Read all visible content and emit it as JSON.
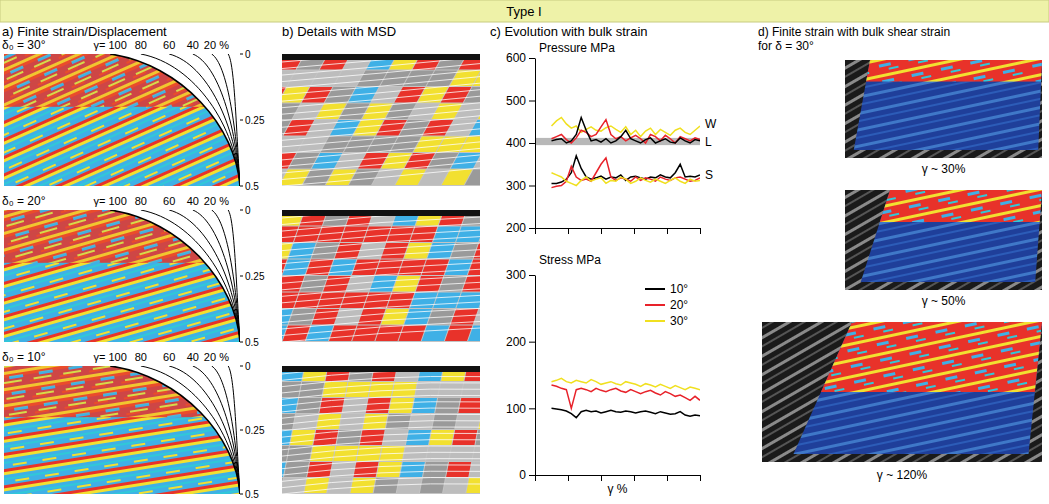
{
  "figure": {
    "title": "Type I",
    "panel_a": {
      "title": "a) Finite strain/Displacement",
      "rows": [
        "δ₀ = 30°",
        "δ₀ = 20°",
        "δ₀ = 10°"
      ],
      "strain_labels": [
        "γ= 100",
        "80",
        "60",
        "40",
        "20 %"
      ],
      "depth_ticks": [
        0,
        0.25,
        0.5
      ]
    },
    "panel_b": {
      "title": "b) Details with MSD"
    },
    "panel_c": {
      "title": "c) Evolution with bulk strain"
    },
    "panel_d": {
      "title": "d)  Finite strain with  bulk shear strain",
      "subtitle": "for δ = 30°",
      "labels": [
        "γ ~ 30%",
        "γ ~ 50%",
        "γ ~ 120%"
      ]
    }
  },
  "chart_data": [
    {
      "type": "line",
      "title": "Pressure MPa",
      "x": [
        10,
        13,
        16,
        19,
        22,
        25,
        28,
        31,
        34,
        37,
        40,
        43,
        46,
        49,
        52,
        55,
        58,
        61,
        64,
        67,
        70,
        73,
        76,
        79,
        82,
        85,
        88,
        91,
        94,
        97,
        100
      ],
      "xlim": [
        0,
        100
      ],
      "xticks": [
        0,
        20,
        40,
        60,
        80,
        100
      ],
      "ylim": [
        200,
        600
      ],
      "yticks": [
        200,
        300,
        400,
        500,
        600
      ],
      "tick_labels": "y",
      "series": [
        {
          "color": "#f0e020",
          "values": [
            440,
            452,
            460,
            445,
            435,
            440,
            425,
            432,
            438,
            430,
            428,
            436,
            440,
            432,
            425,
            438,
            420,
            430,
            415,
            428,
            435,
            420,
            432,
            425,
            418,
            430,
            435,
            425,
            420,
            430,
            440
          ]
        },
        {
          "color": "#e8222a",
          "values": [
            410,
            415,
            420,
            408,
            400,
            412,
            430,
            425,
            415,
            420,
            438,
            455,
            420,
            410,
            415,
            405,
            412,
            418,
            410,
            400,
            420,
            415,
            405,
            418,
            410,
            400,
            415,
            410,
            405,
            412,
            408
          ]
        },
        {
          "color": "#000000",
          "values": [
            405,
            408,
            410,
            400,
            405,
            420,
            460,
            430,
            405,
            408,
            402,
            410,
            400,
            405,
            415,
            430,
            410,
            405,
            400,
            408,
            412,
            400,
            405,
            410,
            402,
            400,
            412,
            405,
            400,
            408,
            405
          ]
        },
        {
          "color": "#000000",
          "values": [
            305,
            305,
            308,
            315,
            330,
            370,
            340,
            320,
            315,
            318,
            322,
            315,
            320,
            318,
            325,
            312,
            320,
            322,
            318,
            315,
            320,
            318,
            325,
            320,
            318,
            330,
            350,
            320,
            322,
            320,
            325
          ]
        },
        {
          "color": "#e8222a",
          "values": [
            295,
            298,
            300,
            310,
            345,
            320,
            312,
            315,
            310,
            330,
            350,
            365,
            320,
            312,
            318,
            315,
            310,
            320,
            312,
            318,
            315,
            310,
            320,
            315,
            312,
            318,
            320,
            315,
            310,
            312,
            318
          ]
        },
        {
          "color": "#f0e020",
          "values": [
            330,
            325,
            320,
            310,
            305,
            300,
            312,
            320,
            310,
            315,
            318,
            305,
            312,
            310,
            320,
            315,
            305,
            310,
            318,
            312,
            308,
            315,
            310,
            305,
            312,
            318,
            310,
            305,
            315,
            310,
            312
          ]
        }
      ],
      "bands": [
        {
          "label": "L",
          "range": [
            395,
            412
          ]
        }
      ],
      "annotations": [
        {
          "text": "W",
          "y": 445
        },
        {
          "text": "S",
          "y": 325
        }
      ]
    },
    {
      "type": "line",
      "title": "Stress MPa",
      "xlabel": "γ %",
      "x": [
        10,
        13,
        16,
        19,
        22,
        25,
        28,
        31,
        34,
        37,
        40,
        43,
        46,
        49,
        52,
        55,
        58,
        61,
        64,
        67,
        70,
        73,
        76,
        79,
        82,
        85,
        88,
        91,
        94,
        97,
        100
      ],
      "xlim": [
        0,
        100
      ],
      "xticks": [
        0,
        20,
        40,
        60,
        80,
        100
      ],
      "ylim": [
        0,
        300
      ],
      "yticks": [
        0,
        100,
        200,
        300
      ],
      "tick_labels": "y",
      "legend": "top-right",
      "series": [
        {
          "name": "10°",
          "color": "#000000",
          "values": [
            100,
            99,
            98,
            96,
            92,
            86,
            95,
            97,
            95,
            96,
            93,
            95,
            97,
            95,
            94,
            96,
            95,
            93,
            95,
            96,
            94,
            92,
            95,
            93,
            91,
            92,
            95,
            90,
            88,
            90,
            89
          ]
        },
        {
          "name": "20°",
          "color": "#e8222a",
          "values": [
            135,
            133,
            130,
            128,
            100,
            128,
            130,
            128,
            125,
            130,
            127,
            125,
            128,
            130,
            126,
            124,
            128,
            125,
            122,
            125,
            127,
            123,
            120,
            125,
            122,
            118,
            120,
            116,
            112,
            118,
            112
          ]
        },
        {
          "name": "30°",
          "color": "#f0e020",
          "values": [
            140,
            142,
            145,
            140,
            138,
            142,
            140,
            138,
            143,
            140,
            136,
            138,
            140,
            137,
            135,
            140,
            138,
            136,
            133,
            137,
            135,
            132,
            136,
            133,
            130,
            134,
            131,
            128,
            132,
            130,
            128
          ]
        }
      ]
    }
  ]
}
